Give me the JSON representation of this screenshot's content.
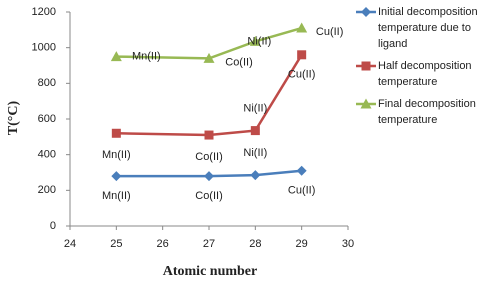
{
  "chart_data": {
    "type": "line",
    "x_label": "Atomic number",
    "y_label": "T(°C)",
    "x": [
      25,
      27,
      28,
      29
    ],
    "xlim": [
      24,
      30
    ],
    "xticks": [
      24,
      25,
      26,
      27,
      28,
      29,
      30
    ],
    "ylim": [
      0,
      1200
    ],
    "yticks": [
      0,
      200,
      400,
      600,
      800,
      1000,
      1200
    ],
    "grid": false,
    "legend": "right",
    "series": [
      {
        "name": "Initial decomposition temperature due to ligand",
        "color": "#4a7ebb",
        "marker": "diamond",
        "values": [
          280,
          280,
          285,
          310
        ],
        "point_labels": [
          "Mn(II)",
          "Co(II)",
          "Ni(II)",
          "Cu(II)"
        ]
      },
      {
        "name": "Half decomposition temperature",
        "color": "#be4b48",
        "marker": "square",
        "values": [
          520,
          510,
          535,
          960
        ],
        "point_labels": [
          "Mn(II)",
          "Co(II)",
          "Ni(II)",
          "Cu(II)"
        ]
      },
      {
        "name": "Final decomposition temperature",
        "color": "#98b954",
        "marker": "triangle",
        "values": [
          950,
          940,
          1035,
          1110
        ],
        "point_labels": [
          "Mn(II)",
          "Co(II)",
          "Ni(II)",
          "Cu(II)"
        ]
      }
    ]
  }
}
